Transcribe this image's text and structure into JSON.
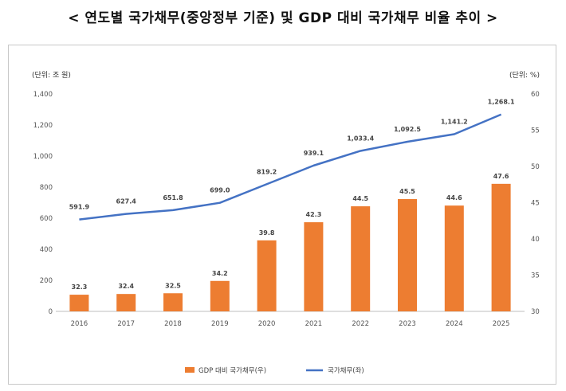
{
  "page": {
    "title": "< 연도별 국가채무(중앙정부 기준) 및 GDP 대비 국가채무 비율 추이 >"
  },
  "chart_data": {
    "type": "bar",
    "title": "",
    "categories": [
      "2016",
      "2017",
      "2018",
      "2019",
      "2020",
      "2021",
      "2022",
      "2023",
      "2024",
      "2025"
    ],
    "y_left": {
      "unit_label": "(단위: 조 원)",
      "ylim": [
        0,
        1400
      ],
      "ticks": [
        "0",
        "200",
        "400",
        "600",
        "800",
        "1,000",
        "1,200",
        "1,400"
      ]
    },
    "y_right": {
      "unit_label": "(단위: %)",
      "ylim": [
        30,
        60
      ],
      "ticks": [
        "30",
        "35",
        "40",
        "45",
        "50",
        "55",
        "60"
      ]
    },
    "series": [
      {
        "name": "GDP 대비 국가채무(우)",
        "type": "bar",
        "axis": "right",
        "color": "#ED7D31",
        "values": [
          32.3,
          32.4,
          32.5,
          34.2,
          39.8,
          42.3,
          44.5,
          45.5,
          44.6,
          47.6
        ],
        "labels": [
          "32.3",
          "32.4",
          "32.5",
          "34.2",
          "39.8",
          "42.3",
          "44.5",
          "45.5",
          "44.6",
          "47.6"
        ]
      },
      {
        "name": "국가채무(좌)",
        "type": "line",
        "axis": "left",
        "color": "#4472C4",
        "values": [
          591.9,
          627.4,
          651.8,
          699.0,
          819.2,
          939.1,
          1033.4,
          1092.5,
          1141.2,
          1268.1
        ],
        "labels": [
          "591.9",
          "627.4",
          "651.8",
          "699.0",
          "819.2",
          "939.1",
          "1,033.4",
          "1,092.5",
          "1,141.2",
          "1,268.1"
        ]
      }
    ],
    "grid": false,
    "legend_position": "bottom"
  }
}
